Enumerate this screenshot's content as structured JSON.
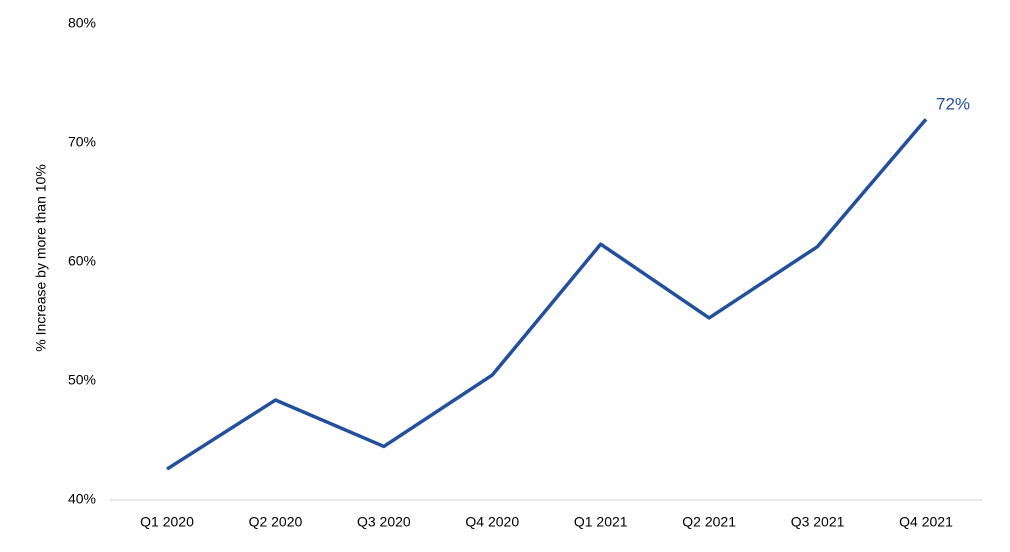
{
  "chart_data": {
    "type": "line",
    "y_label": "% Increase by more than 10%",
    "categories": [
      "Q1 2020",
      "Q2 2020",
      "Q3 2020",
      "Q4 2020",
      "Q1 2021",
      "Q2 2021",
      "Q3 2021",
      "Q4 2021"
    ],
    "series": [
      {
        "color": "#22509c",
        "values": [
          42.6,
          48.4,
          44.5,
          50.5,
          61.5,
          55.3,
          61.3,
          72.0
        ],
        "value_labels": [
          null,
          null,
          null,
          null,
          null,
          null,
          null,
          "72%"
        ]
      }
    ],
    "ylim": [
      40,
      80
    ],
    "yticks": [
      {
        "value": 40,
        "label": "40%"
      },
      {
        "value": 50,
        "label": "50%"
      },
      {
        "value": 60,
        "label": "60%"
      },
      {
        "value": 70,
        "label": "70%"
      },
      {
        "value": 80,
        "label": "80%"
      }
    ],
    "grid": false
  }
}
